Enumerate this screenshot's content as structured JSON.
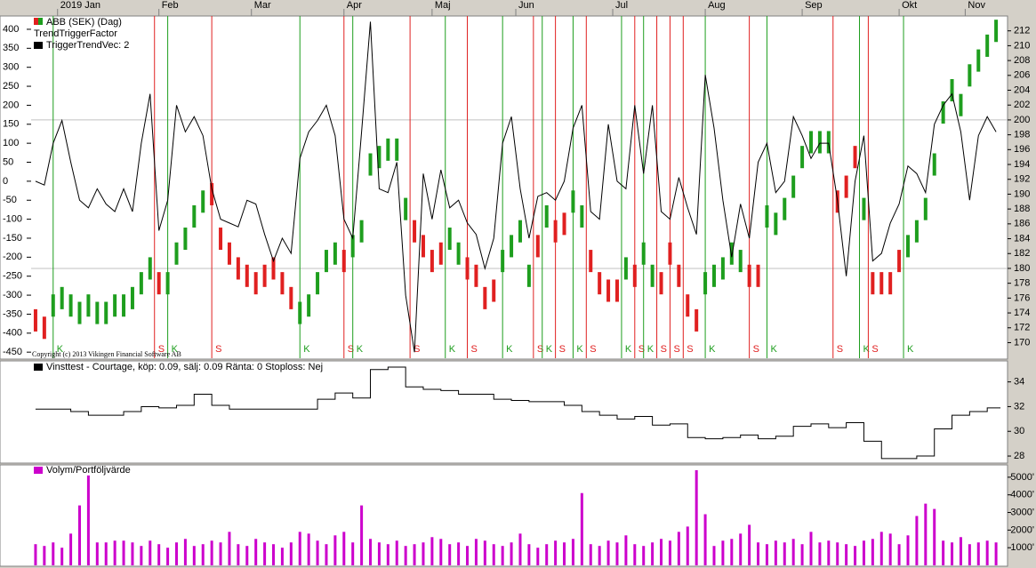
{
  "chart_data": [
    {
      "type": "ohlc",
      "xlim": [
        -1,
        220
      ],
      "xticks": [
        {
          "value": 5,
          "label": "2019 Jan"
        },
        {
          "value": 28,
          "label": "Feb"
        },
        {
          "value": 49,
          "label": "Mar"
        },
        {
          "value": 70,
          "label": "Apr"
        },
        {
          "value": 90,
          "label": "Maj"
        },
        {
          "value": 109,
          "label": "Jun"
        },
        {
          "value": 131,
          "label": "Jul"
        },
        {
          "value": 152,
          "label": "Aug"
        },
        {
          "value": 174,
          "label": "Sep"
        },
        {
          "value": 196,
          "label": "Okt"
        },
        {
          "value": 211,
          "label": "Nov"
        }
      ],
      "ylim": [
        -466,
        435
      ],
      "yticks": [
        400,
        350,
        300,
        250,
        200,
        150,
        100,
        50,
        0,
        -50,
        -100,
        -150,
        -200,
        -250,
        -300,
        -350,
        -400,
        -450
      ],
      "y2lim": [
        167.9,
        214
      ],
      "y2ticks": [
        170,
        172,
        174,
        176,
        178,
        180,
        182,
        184,
        186,
        188,
        190,
        192,
        194,
        196,
        198,
        200,
        202,
        204,
        206,
        208,
        210,
        212
      ],
      "reference_lines": [
        180,
        200
      ],
      "indicator": "TriggerTrendVec: 2",
      "copyright": "Copyright (c) 2013 Vikingen Financial Software AB",
      "signal_colors": {
        "K": "#1e9e1e",
        "S": "#e02020"
      },
      "x": [
        0,
        2,
        4,
        6,
        8,
        10,
        12,
        14,
        16,
        18,
        20,
        22,
        24,
        26,
        28,
        30,
        32,
        34,
        36,
        38,
        40,
        42,
        44,
        46,
        48,
        50,
        52,
        54,
        56,
        58,
        60,
        62,
        64,
        66,
        68,
        70,
        72,
        74,
        76,
        78,
        80,
        82,
        84,
        86,
        88,
        90,
        92,
        94,
        96,
        98,
        100,
        102,
        104,
        106,
        108,
        110,
        112,
        114,
        116,
        118,
        120,
        122,
        124,
        126,
        128,
        130,
        132,
        134,
        136,
        138,
        140,
        142,
        144,
        146,
        148,
        150,
        152,
        154,
        156,
        158,
        160,
        162,
        164,
        166,
        168,
        170,
        172,
        174,
        176,
        178,
        180,
        182,
        184,
        186,
        188,
        190,
        192,
        194,
        196,
        198,
        200,
        202,
        204,
        206,
        208,
        210,
        212,
        214,
        216,
        218
      ],
      "series": [
        {
          "name": "ABB (SEK) (Dag)",
          "axis": "y2",
          "low": [
            171.5,
            170.5,
            173.5,
            174.5,
            173.5,
            172.5,
            173.5,
            172.5,
            172.5,
            173.5,
            173.5,
            174.5,
            176.5,
            178.5,
            176.5,
            176.5,
            180.5,
            182.5,
            185.5,
            187.5,
            188.5,
            182.5,
            180.5,
            178.5,
            177.5,
            176.5,
            177.5,
            178.5,
            176.5,
            174.5,
            172.5,
            173.5,
            176.5,
            179.5,
            180.5,
            179.5,
            181.5,
            183.5,
            192.5,
            193.5,
            194.5,
            194.5,
            186.5,
            183.5,
            181.5,
            179.5,
            180.5,
            182.5,
            180.5,
            178.5,
            177.5,
            174.5,
            175.5,
            179.5,
            181.5,
            183.5,
            177.5,
            181.5,
            185.5,
            183.5,
            184.5,
            187.5,
            185.5,
            179.5,
            176.5,
            175.5,
            175.5,
            178.5,
            177.5,
            180.5,
            177.5,
            176.5,
            180.5,
            177.5,
            173.5,
            171.5,
            176.5,
            177.5,
            178.5,
            180.5,
            179.5,
            177.5,
            177.5,
            185.5,
            184.5,
            186.5,
            189.5,
            193.5,
            195.5,
            195.5,
            195.5,
            187.5,
            189.5,
            193.5,
            186.5,
            176.5,
            176.5,
            176.5,
            179.5,
            181.5,
            183.5,
            186.5,
            192.5,
            199.5,
            202.5,
            200.5,
            204.5,
            206.5,
            208.5,
            210.5
          ],
          "high": [
            174.5,
            173.5,
            176.5,
            177.5,
            176.5,
            175.5,
            176.5,
            175.5,
            175.5,
            176.5,
            176.5,
            177.5,
            179.5,
            181.5,
            179.5,
            179.5,
            183.5,
            185.5,
            188.5,
            190.5,
            191.5,
            185.5,
            183.5,
            181.5,
            180.5,
            179.5,
            180.5,
            181.5,
            179.5,
            177.5,
            175.5,
            176.5,
            179.5,
            182.5,
            183.5,
            182.5,
            184.5,
            186.5,
            195.5,
            196.5,
            197.5,
            197.5,
            189.5,
            186.5,
            184.5,
            182.5,
            183.5,
            185.5,
            183.5,
            181.5,
            180.5,
            177.5,
            178.5,
            182.5,
            184.5,
            186.5,
            180.5,
            184.5,
            188.5,
            186.5,
            187.5,
            190.5,
            188.5,
            182.5,
            179.5,
            178.5,
            178.5,
            181.5,
            180.5,
            183.5,
            180.5,
            179.5,
            183.5,
            180.5,
            176.5,
            174.5,
            179.5,
            180.5,
            181.5,
            183.5,
            182.5,
            180.5,
            180.5,
            188.5,
            187.5,
            189.5,
            192.5,
            196.5,
            198.5,
            198.5,
            198.5,
            190.5,
            192.5,
            196.5,
            189.5,
            179.5,
            179.5,
            179.5,
            182.5,
            184.5,
            186.5,
            189.5,
            195.5,
            202.5,
            205.5,
            203.5,
            207.5,
            209.5,
            211.5,
            213.5
          ]
        },
        {
          "name": "TrendTriggerFactor",
          "axis": "y",
          "color": "#000000",
          "values": [
            0,
            -10,
            100,
            160,
            50,
            -50,
            -70,
            -20,
            -60,
            -80,
            -20,
            -80,
            100,
            230,
            -130,
            -50,
            200,
            130,
            170,
            120,
            -20,
            -100,
            -110,
            -120,
            -50,
            -60,
            -140,
            -210,
            -150,
            -190,
            60,
            130,
            160,
            200,
            120,
            -100,
            -150,
            130,
            420,
            -20,
            -30,
            50,
            -300,
            -450,
            20,
            -100,
            30,
            -70,
            -50,
            -110,
            -140,
            -230,
            -150,
            100,
            170,
            -20,
            -150,
            -40,
            -30,
            -50,
            0,
            140,
            200,
            -80,
            -100,
            150,
            0,
            -20,
            200,
            20,
            200,
            -80,
            -100,
            10,
            -70,
            -140,
            280,
            140,
            -50,
            -200,
            -60,
            -150,
            50,
            100,
            -30,
            0,
            170,
            120,
            60,
            100,
            100,
            -50,
            -250,
            0,
            120,
            -210,
            -190,
            -110,
            -60,
            40,
            20,
            -30,
            150,
            200,
            230,
            130,
            -50,
            120,
            170,
            130
          ]
        }
      ],
      "signals": [
        {
          "x": 4,
          "label": "K"
        },
        {
          "x": 27,
          "label": "S"
        },
        {
          "x": 30,
          "label": "K"
        },
        {
          "x": 40,
          "label": "S"
        },
        {
          "x": 60,
          "label": "K"
        },
        {
          "x": 70,
          "label": "S"
        },
        {
          "x": 72,
          "label": "K"
        },
        {
          "x": 85,
          "label": "S"
        },
        {
          "x": 93,
          "label": "K"
        },
        {
          "x": 98,
          "label": "S"
        },
        {
          "x": 106,
          "label": "K"
        },
        {
          "x": 113,
          "label": "S"
        },
        {
          "x": 115,
          "label": "K"
        },
        {
          "x": 118,
          "label": "S"
        },
        {
          "x": 122,
          "label": "K"
        },
        {
          "x": 125,
          "label": "S"
        },
        {
          "x": 133,
          "label": "K"
        },
        {
          "x": 136,
          "label": "S"
        },
        {
          "x": 138,
          "label": "K"
        },
        {
          "x": 141,
          "label": "S"
        },
        {
          "x": 144,
          "label": "S"
        },
        {
          "x": 147,
          "label": "S"
        },
        {
          "x": 152,
          "label": "K"
        },
        {
          "x": 162,
          "label": "S"
        },
        {
          "x": 166,
          "label": "K"
        },
        {
          "x": 181,
          "label": "S"
        },
        {
          "x": 187,
          "label": "K"
        },
        {
          "x": 189,
          "label": "S"
        },
        {
          "x": 197,
          "label": "K"
        }
      ]
    },
    {
      "type": "line",
      "xlim": [
        -1,
        220
      ],
      "y2lim": [
        27.5,
        35.7
      ],
      "y2ticks": [
        28,
        30,
        32,
        34
      ],
      "series": [
        {
          "name": "Vinsttest - Courtage, köp: 0.09, sälj: 0.09  Ränta: 0  Stoploss: Nej",
          "axis": "y2",
          "color": "#000000",
          "x": [
            0,
            4,
            8,
            12,
            16,
            20,
            24,
            28,
            32,
            36,
            40,
            44,
            48,
            52,
            56,
            60,
            64,
            68,
            72,
            76,
            80,
            84,
            88,
            92,
            96,
            100,
            104,
            108,
            112,
            116,
            120,
            124,
            128,
            132,
            136,
            140,
            144,
            148,
            152,
            156,
            160,
            164,
            168,
            172,
            176,
            180,
            184,
            188,
            192,
            196,
            200,
            204,
            208,
            212,
            216,
            219
          ],
          "values": [
            31.8,
            31.8,
            31.6,
            31.3,
            31.3,
            31.6,
            32.0,
            31.9,
            32.1,
            33.0,
            32.1,
            31.8,
            31.8,
            31.8,
            31.8,
            31.8,
            32.6,
            33.1,
            32.7,
            35.0,
            35.2,
            33.6,
            33.4,
            33.3,
            33.0,
            33.0,
            32.6,
            32.5,
            32.4,
            32.4,
            32.1,
            31.6,
            31.3,
            31.0,
            31.2,
            30.5,
            30.6,
            29.5,
            29.4,
            29.5,
            29.7,
            29.4,
            29.6,
            30.4,
            30.6,
            30.3,
            30.7,
            29.2,
            27.8,
            27.8,
            28.0,
            30.2,
            31.3,
            31.6,
            31.9,
            31.9
          ]
        }
      ]
    },
    {
      "type": "bar",
      "xlim": [
        -1,
        220
      ],
      "ylim": [
        0,
        5700
      ],
      "yticks": [
        {
          "value": 1000,
          "label": "1000'"
        },
        {
          "value": 2000,
          "label": "2000'"
        },
        {
          "value": 3000,
          "label": "3000'"
        },
        {
          "value": 4000,
          "label": "4000'"
        },
        {
          "value": 5000,
          "label": "5000'"
        }
      ],
      "series": [
        {
          "name": "Volym/Portföljvärde",
          "color": "#cc00cc",
          "x": [
            0,
            2,
            4,
            6,
            8,
            10,
            12,
            14,
            16,
            18,
            20,
            22,
            24,
            26,
            28,
            30,
            32,
            34,
            36,
            38,
            40,
            42,
            44,
            46,
            48,
            50,
            52,
            54,
            56,
            58,
            60,
            62,
            64,
            66,
            68,
            70,
            72,
            74,
            76,
            78,
            80,
            82,
            84,
            86,
            88,
            90,
            92,
            94,
            96,
            98,
            100,
            102,
            104,
            106,
            108,
            110,
            112,
            114,
            116,
            118,
            120,
            122,
            124,
            126,
            128,
            130,
            132,
            134,
            136,
            138,
            140,
            142,
            144,
            146,
            148,
            150,
            152,
            154,
            156,
            158,
            160,
            162,
            164,
            166,
            168,
            170,
            172,
            174,
            176,
            178,
            180,
            182,
            184,
            186,
            188,
            190,
            192,
            194,
            196,
            198,
            200,
            202,
            204,
            206,
            208,
            210,
            212,
            214,
            216,
            218
          ],
          "values": [
            1200,
            1100,
            1300,
            1000,
            1800,
            3400,
            5100,
            1300,
            1300,
            1400,
            1400,
            1300,
            1100,
            1400,
            1200,
            1000,
            1300,
            1500,
            1100,
            1200,
            1400,
            1300,
            1900,
            1200,
            1100,
            1500,
            1300,
            1200,
            1000,
            1300,
            1900,
            1800,
            1400,
            1200,
            1700,
            1900,
            1300,
            3400,
            1500,
            1300,
            1200,
            1400,
            1100,
            1200,
            1300,
            1600,
            1500,
            1200,
            1300,
            1100,
            1500,
            1400,
            1200,
            1100,
            1300,
            1800,
            1200,
            1000,
            1200,
            1400,
            1300,
            1500,
            4100,
            1200,
            1100,
            1400,
            1300,
            1700,
            1200,
            1100,
            1300,
            1500,
            1400,
            1900,
            2200,
            5400,
            2900,
            1100,
            1400,
            1500,
            1800,
            2300,
            1300,
            1200,
            1400,
            1300,
            1500,
            1200,
            1900,
            1300,
            1400,
            1300,
            1200,
            1100,
            1400,
            1500,
            1900,
            1800,
            1200,
            1700,
            2800,
            3500,
            3200,
            1400,
            1300,
            1600,
            1200,
            1300,
            1400,
            1300
          ]
        }
      ]
    }
  ]
}
